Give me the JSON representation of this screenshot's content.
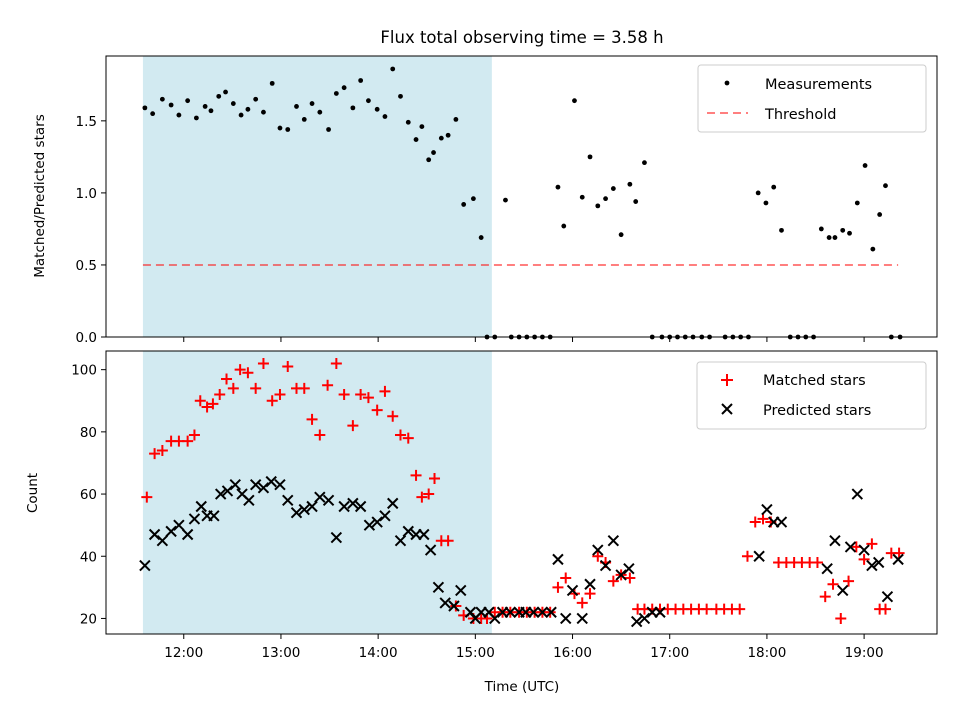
{
  "figure": {
    "title": "Flux total observing time = 3.58 h",
    "highlight_color": "#add8e6",
    "colors": {
      "measurements": "#000000",
      "threshold": "#ff0000",
      "matched": "#ff0000",
      "predicted": "#000000"
    }
  },
  "chart_data": [
    {
      "type": "scatter",
      "panel": "top",
      "ylabel": "Matched/Predicted stars",
      "xlabel": "",
      "xlim": [
        11.2,
        19.75
      ],
      "ylim": [
        0,
        1.95
      ],
      "yticks": [
        0.0,
        0.5,
        1.0,
        1.5
      ],
      "ytick_labels": [
        "0.0",
        "0.5",
        "1.0",
        "1.5"
      ],
      "shaded_span": [
        11.58,
        15.17
      ],
      "legend": {
        "placement": "top-right",
        "entries": [
          "Measurements",
          "Threshold"
        ]
      },
      "threshold": {
        "name": "Threshold",
        "y": 0.5,
        "x_range": [
          11.58,
          19.35
        ],
        "style": "dashed"
      },
      "series": [
        {
          "name": "Measurements",
          "x": [
            11.6,
            11.68,
            11.78,
            11.87,
            11.95,
            12.04,
            12.13,
            12.22,
            12.28,
            12.36,
            12.43,
            12.51,
            12.59,
            12.66,
            12.74,
            12.82,
            12.91,
            12.99,
            13.07,
            13.16,
            13.24,
            13.32,
            13.4,
            13.49,
            13.57,
            13.65,
            13.74,
            13.82,
            13.9,
            13.99,
            14.07,
            14.15,
            14.23,
            14.31,
            14.39,
            14.45,
            14.52,
            14.57,
            14.65,
            14.72,
            14.8,
            14.88,
            14.98,
            15.06,
            15.12,
            15.2,
            15.31,
            15.37,
            15.45,
            15.53,
            15.61,
            15.69,
            15.77,
            15.85,
            15.91,
            16.02,
            16.1,
            16.18,
            16.26,
            16.34,
            16.42,
            16.5,
            16.59,
            16.65,
            16.74,
            16.82,
            16.92,
            17.0,
            17.08,
            17.16,
            17.24,
            17.33,
            17.41,
            17.57,
            17.65,
            17.73,
            17.81,
            17.91,
            17.99,
            18.07,
            18.15,
            18.24,
            18.32,
            18.4,
            18.48,
            18.56,
            18.64,
            18.7,
            18.78,
            18.85,
            18.93,
            19.01,
            19.09,
            19.16,
            19.22,
            19.28,
            19.37
          ],
          "y": [
            1.59,
            1.55,
            1.65,
            1.61,
            1.54,
            1.64,
            1.52,
            1.6,
            1.57,
            1.67,
            1.7,
            1.62,
            1.54,
            1.58,
            1.65,
            1.56,
            1.76,
            1.45,
            1.44,
            1.6,
            1.51,
            1.62,
            1.56,
            1.44,
            1.69,
            1.73,
            1.59,
            1.78,
            1.64,
            1.58,
            1.53,
            1.86,
            1.67,
            1.49,
            1.37,
            1.46,
            1.23,
            1.28,
            1.38,
            1.4,
            1.51,
            0.92,
            0.96,
            0.69,
            0.0,
            0.0,
            0.95,
            0.0,
            0.0,
            0.0,
            0.0,
            0.0,
            0.0,
            1.04,
            0.77,
            1.64,
            0.97,
            1.25,
            0.91,
            0.96,
            1.03,
            0.71,
            1.06,
            0.94,
            1.21,
            0.0,
            0.0,
            0.0,
            0.0,
            0.0,
            0.0,
            0.0,
            0.0,
            0.0,
            0.0,
            0.0,
            0.0,
            1.0,
            0.93,
            1.04,
            0.74,
            0.0,
            0.0,
            0.0,
            0.0,
            0.75,
            0.69,
            0.69,
            0.74,
            0.72,
            0.93,
            1.19,
            0.61,
            0.85,
            1.05,
            0.0,
            0.0
          ]
        }
      ]
    },
    {
      "type": "scatter",
      "panel": "bottom",
      "ylabel": "Count",
      "xlabel": "Time (UTC)",
      "xlim": [
        11.2,
        19.75
      ],
      "ylim": [
        15,
        106
      ],
      "xticks": [
        12,
        13,
        14,
        15,
        16,
        17,
        18,
        19
      ],
      "xtick_labels": [
        "12:00",
        "13:00",
        "14:00",
        "15:00",
        "16:00",
        "17:00",
        "18:00",
        "19:00"
      ],
      "yticks": [
        20,
        40,
        60,
        80,
        100
      ],
      "ytick_labels": [
        "20",
        "40",
        "60",
        "80",
        "100"
      ],
      "shaded_span": [
        11.58,
        15.17
      ],
      "legend": {
        "placement": "top-right",
        "entries": [
          "Matched stars",
          "Predicted stars"
        ]
      },
      "series": [
        {
          "name": "Matched stars",
          "marker": "plus",
          "x": [
            11.62,
            11.7,
            11.78,
            11.87,
            11.95,
            12.04,
            12.11,
            12.17,
            12.24,
            12.3,
            12.37,
            12.44,
            12.51,
            12.58,
            12.66,
            12.74,
            12.82,
            12.91,
            12.99,
            13.07,
            13.16,
            13.24,
            13.32,
            13.4,
            13.48,
            13.57,
            13.65,
            13.74,
            13.82,
            13.9,
            13.99,
            14.07,
            14.15,
            14.23,
            14.31,
            14.39,
            14.45,
            14.52,
            14.58,
            14.65,
            14.72,
            14.8,
            14.88,
            14.98,
            15.06,
            15.12,
            15.2,
            15.28,
            15.36,
            15.45,
            15.53,
            15.61,
            15.69,
            15.77,
            15.85,
            15.93,
            16.02,
            16.1,
            16.18,
            16.26,
            16.34,
            16.42,
            16.5,
            16.59,
            16.67,
            16.74,
            16.82,
            16.9,
            16.98,
            17.06,
            17.14,
            17.22,
            17.3,
            17.38,
            17.48,
            17.56,
            17.64,
            17.72,
            17.8,
            17.88,
            17.96,
            18.04,
            18.12,
            18.2,
            18.28,
            18.36,
            18.44,
            18.52,
            18.6,
            18.68,
            18.76,
            18.84,
            18.92,
            19.0,
            19.08,
            19.16,
            19.22,
            19.28,
            19.36
          ],
          "y": [
            59,
            73,
            74,
            77,
            77,
            77,
            79,
            90,
            88,
            89,
            92,
            97,
            94,
            100,
            99,
            94,
            102,
            90,
            92,
            101,
            94,
            94,
            84,
            79,
            95,
            102,
            92,
            82,
            92,
            91,
            87,
            93,
            85,
            79,
            78,
            66,
            59,
            60,
            65,
            45,
            45,
            24,
            21,
            20,
            20,
            20,
            22,
            22,
            22,
            22,
            22,
            22,
            22,
            22,
            30,
            33,
            28,
            25,
            28,
            40,
            38,
            32,
            34,
            33,
            23,
            23,
            23,
            23,
            23,
            23,
            23,
            23,
            23,
            23,
            23,
            23,
            23,
            23,
            40,
            51,
            52,
            51,
            38,
            38,
            38,
            38,
            38,
            38,
            27,
            31,
            20,
            32,
            43,
            39,
            44,
            23,
            23,
            41,
            41
          ]
        },
        {
          "name": "Predicted stars",
          "marker": "x",
          "x": [
            11.6,
            11.7,
            11.78,
            11.87,
            11.95,
            12.04,
            12.11,
            12.18,
            12.24,
            12.31,
            12.38,
            12.45,
            12.53,
            12.6,
            12.67,
            12.74,
            12.82,
            12.9,
            12.99,
            13.07,
            13.16,
            13.24,
            13.32,
            13.4,
            13.49,
            13.57,
            13.65,
            13.74,
            13.82,
            13.91,
            13.99,
            14.07,
            14.15,
            14.23,
            14.31,
            14.39,
            14.47,
            14.54,
            14.62,
            14.69,
            14.78,
            14.85,
            14.95,
            15.0,
            15.06,
            15.14,
            15.2,
            15.28,
            15.36,
            15.45,
            15.52,
            15.6,
            15.69,
            15.78,
            15.85,
            15.93,
            16.0,
            16.1,
            16.18,
            16.26,
            16.34,
            16.42,
            16.5,
            16.58,
            16.66,
            16.74,
            16.82,
            16.9,
            17.92,
            18.0,
            18.07,
            18.15,
            18.62,
            18.7,
            18.78,
            18.86,
            18.93,
            19.0,
            19.08,
            19.15,
            19.24,
            19.35
          ],
          "y": [
            37,
            47,
            45,
            48,
            50,
            47,
            52,
            56,
            53,
            53,
            60,
            61,
            63,
            60,
            58,
            63,
            62,
            64,
            63,
            58,
            54,
            55,
            56,
            59,
            58,
            46,
            56,
            57,
            56,
            50,
            51,
            53,
            57,
            45,
            48,
            47,
            47,
            42,
            30,
            25,
            24,
            29,
            22,
            20,
            22,
            22,
            20,
            22,
            22,
            22,
            22,
            22,
            22,
            22,
            39,
            20,
            29,
            20,
            31,
            42,
            37,
            45,
            34,
            36,
            19,
            20,
            22,
            22,
            40,
            55,
            51,
            51,
            36,
            45,
            29,
            43,
            60,
            42,
            37,
            38,
            27,
            39
          ]
        }
      ]
    }
  ]
}
